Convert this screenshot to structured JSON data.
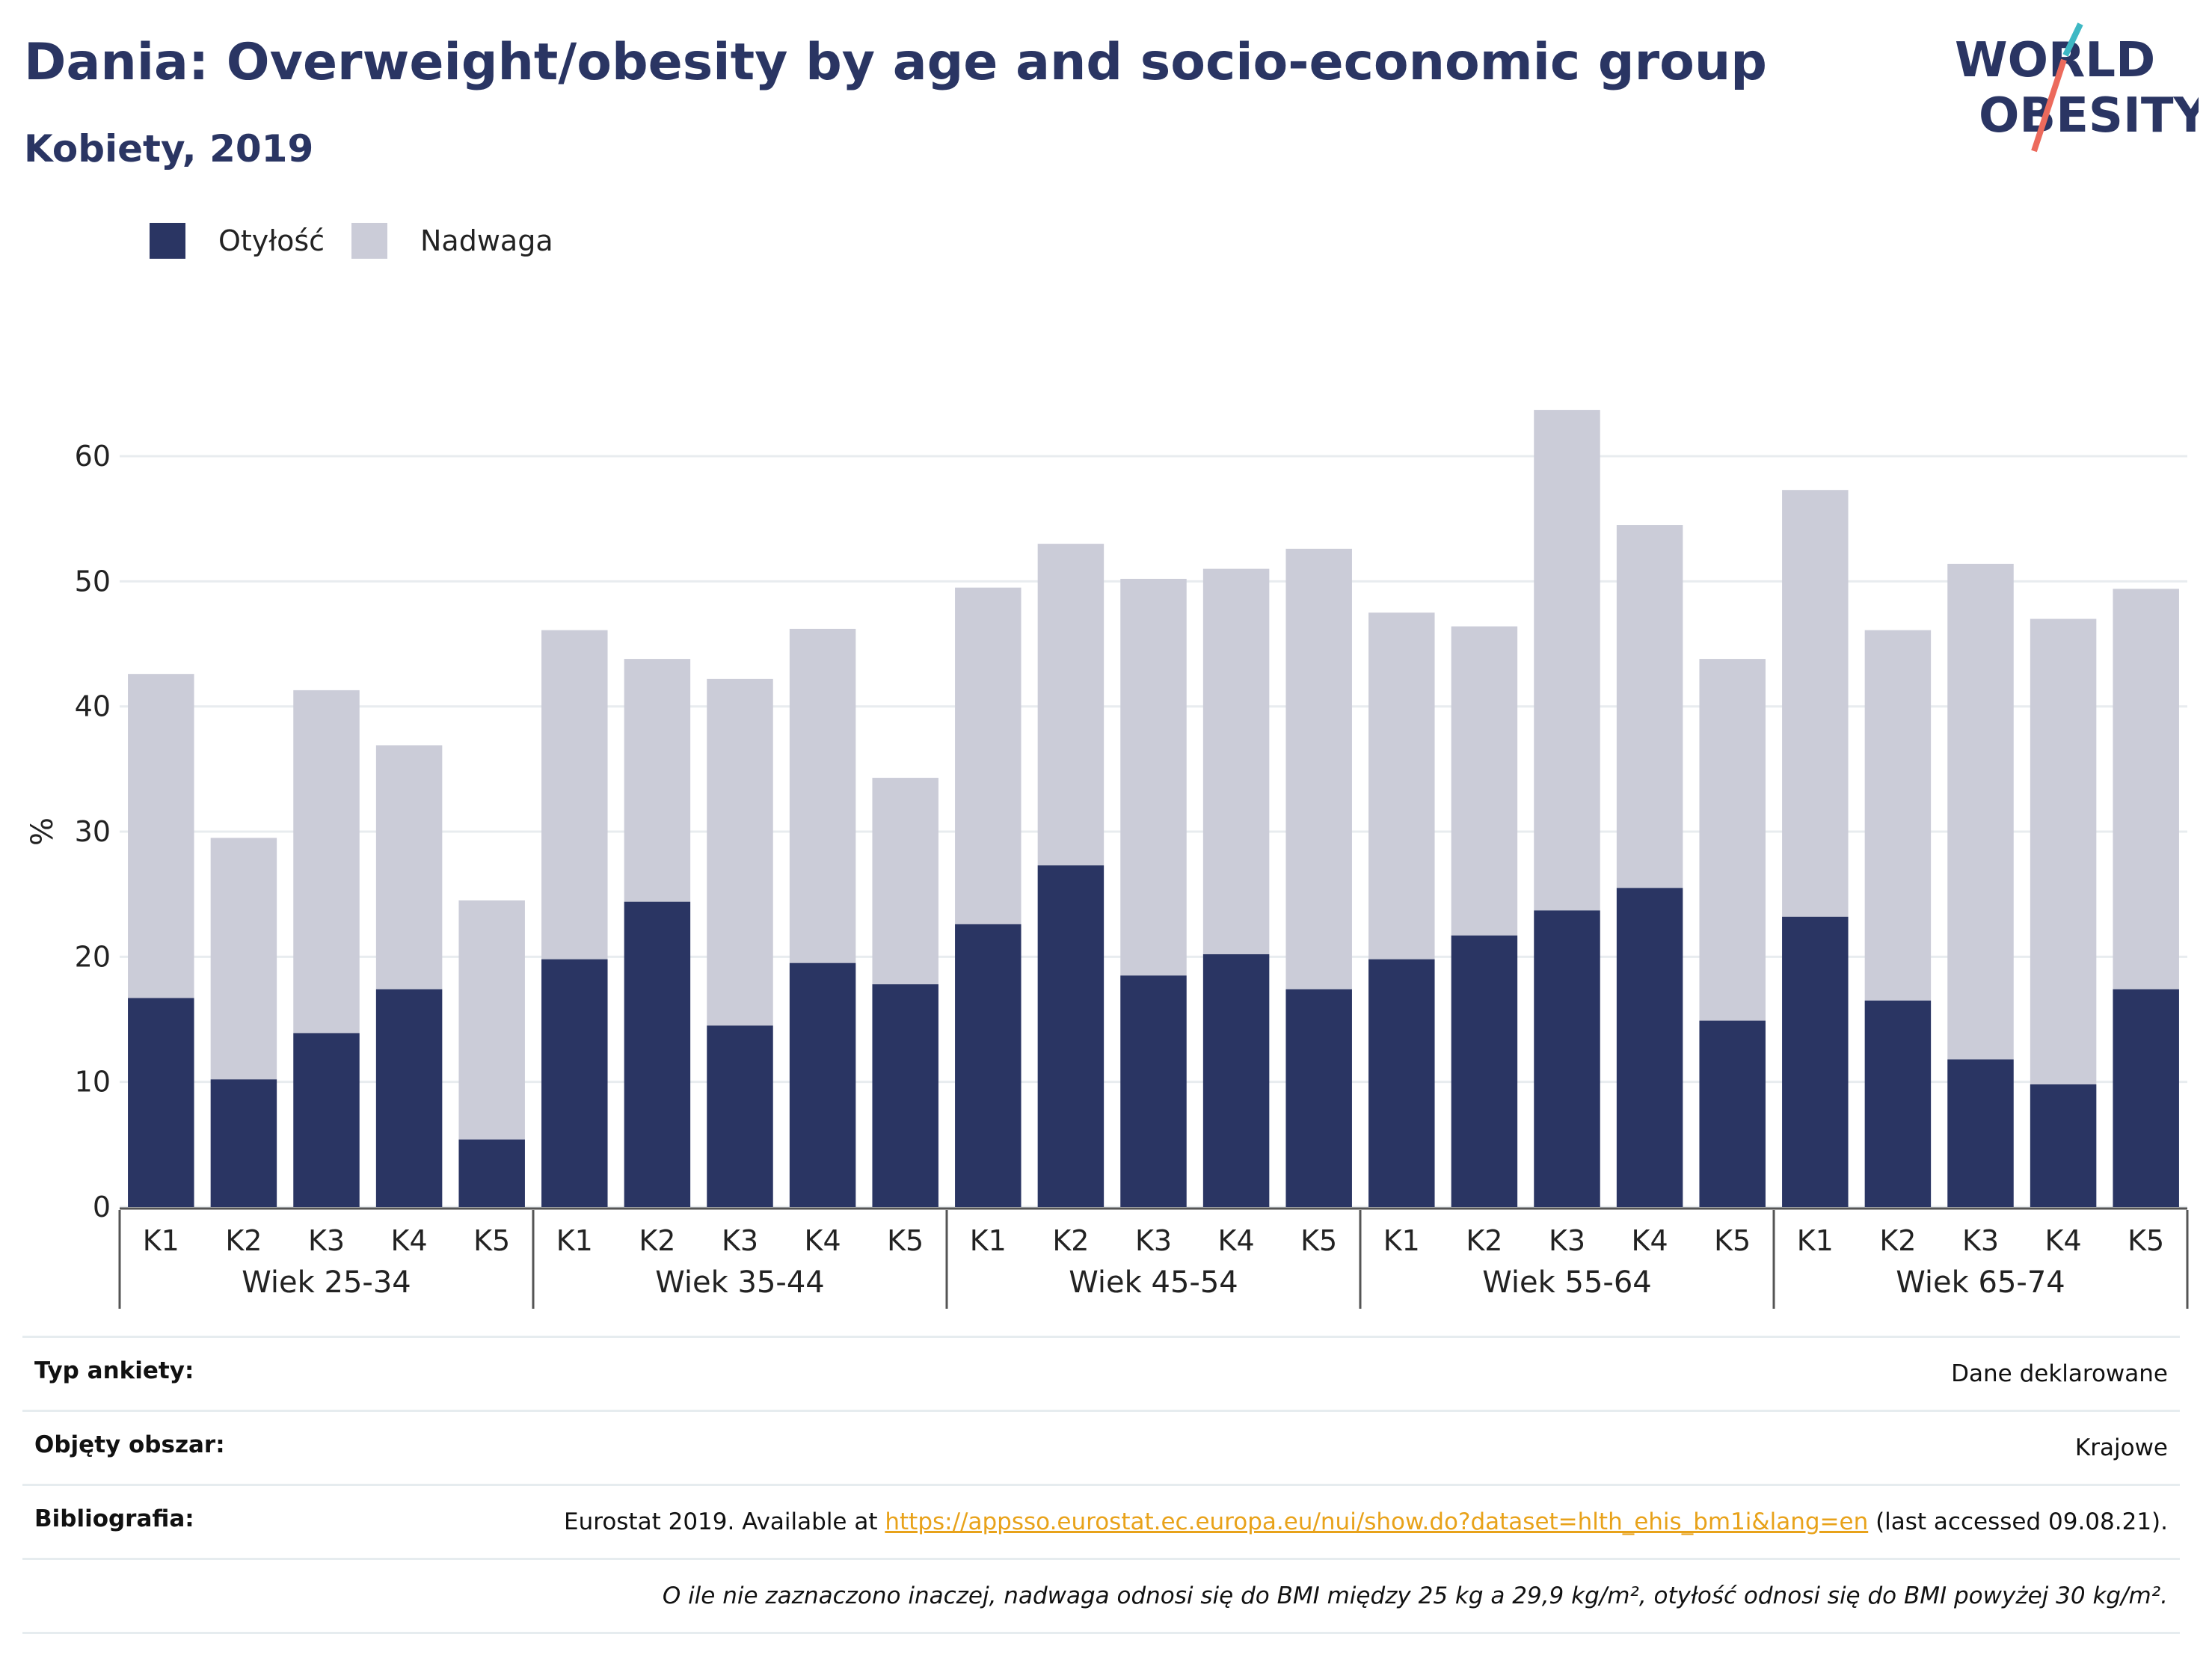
{
  "title": "Dania: Overweight/obesity by age and socio-economic group",
  "subtitle": "Kobiety, 2019",
  "logo": {
    "line1": "WORLD",
    "line2": "OBESITY"
  },
  "legend": [
    {
      "label": "Otyłość",
      "color": "#2a3563"
    },
    {
      "label": "Nadwaga",
      "color": "#cbccd8"
    }
  ],
  "chart_data": {
    "type": "bar",
    "stacked": true,
    "ylabel": "%",
    "ylim": [
      0,
      65
    ],
    "yticks": [
      0,
      10,
      20,
      30,
      40,
      50,
      60
    ],
    "grid": true,
    "legend_position": "top-left",
    "groups": [
      {
        "label": "Wiek 25-34",
        "categories": [
          "K1",
          "K2",
          "K3",
          "K4",
          "K5"
        ],
        "obesity": [
          16.7,
          10.2,
          13.9,
          17.4,
          5.4
        ],
        "total": [
          42.6,
          29.5,
          41.3,
          36.9,
          24.5
        ]
      },
      {
        "label": "Wiek 35-44",
        "categories": [
          "K1",
          "K2",
          "K3",
          "K4",
          "K5"
        ],
        "obesity": [
          19.8,
          24.4,
          14.5,
          19.5,
          17.8
        ],
        "total": [
          46.1,
          43.8,
          42.2,
          46.2,
          34.3
        ]
      },
      {
        "label": "Wiek 45-54",
        "categories": [
          "K1",
          "K2",
          "K3",
          "K4",
          "K5"
        ],
        "obesity": [
          22.6,
          27.3,
          18.5,
          20.2,
          17.4
        ],
        "total": [
          49.5,
          53.0,
          50.2,
          51.0,
          52.6
        ]
      },
      {
        "label": "Wiek 55-64",
        "categories": [
          "K1",
          "K2",
          "K3",
          "K4",
          "K5"
        ],
        "obesity": [
          19.8,
          21.7,
          23.7,
          25.5,
          14.9
        ],
        "total": [
          47.5,
          46.4,
          63.7,
          54.5,
          43.8
        ]
      },
      {
        "label": "Wiek 65-74",
        "categories": [
          "K1",
          "K2",
          "K3",
          "K4",
          "K5"
        ],
        "obesity": [
          23.2,
          16.5,
          11.8,
          9.8,
          17.4
        ],
        "total": [
          57.3,
          46.1,
          51.4,
          47.0,
          49.4
        ]
      }
    ],
    "series": [
      {
        "name": "Otyłość",
        "color": "#2a3563"
      },
      {
        "name": "Nadwaga",
        "color": "#cbccd8"
      }
    ]
  },
  "info": [
    {
      "label": "Typ ankiety:",
      "value": "Dane deklarowane"
    },
    {
      "label": "Objęty obszar:",
      "value": "Krajowe"
    },
    {
      "label": "Bibliografia:",
      "value_prefix": "Eurostat 2019. Available at ",
      "link": "https://appsso.eurostat.ec.europa.eu/nui/show.do?dataset=hlth_ehis_bm1i&lang=en",
      "value_suffix": " (last accessed 09.08.21)."
    }
  ],
  "note": "O ile nie zaznaczono inaczej, nadwaga odnosi się do BMI między 25 kg a 29,9 kg/m², otyłość odnosi się do BMI powyżej 30 kg/m²."
}
